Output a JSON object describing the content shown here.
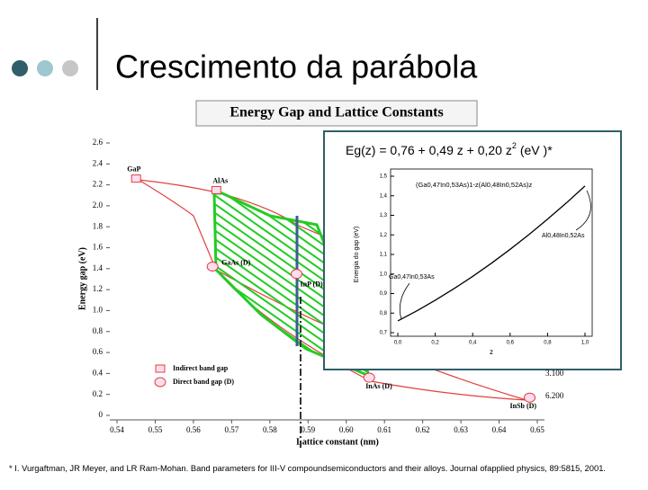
{
  "header": {
    "title": "Crescimento da parábola"
  },
  "figure": {
    "title": "Energy Gap and Lattice Constants",
    "x_label": "Lattice constant (nm)",
    "y_label": "Energy gap (eV)",
    "xlim": [
      0.54,
      0.65
    ],
    "ylim": [
      0,
      2.6
    ],
    "xticks": [
      0.54,
      0.55,
      0.56,
      0.57,
      0.58,
      0.59,
      {
        "value": 0.6,
        "label": "0.60"
      },
      0.61,
      0.62,
      0.63,
      0.64,
      0.65
    ],
    "yticks": [
      0,
      0.2,
      0.4,
      0.6,
      0.8,
      {
        "value": 1,
        "label": "1.0"
      },
      1.2,
      1.4,
      1.6,
      1.8,
      {
        "value": 2,
        "label": "2.0"
      },
      2.2,
      2.4,
      2.6
    ],
    "points": [
      {
        "label": "GaP",
        "x": 0.545,
        "y": 2.26,
        "marker": "square"
      },
      {
        "label": "AlAs",
        "x": 0.566,
        "y": 2.15,
        "marker": "square"
      },
      {
        "label": "GaAs (D)",
        "x": 0.565,
        "y": 1.42,
        "marker": "circle"
      },
      {
        "label": "InP (D)",
        "x": 0.587,
        "y": 1.35,
        "marker": "circle"
      },
      {
        "label": "InAs (D)",
        "x": 0.606,
        "y": 0.36,
        "marker": "circle"
      },
      {
        "label": "InSb (D)",
        "x": 0.648,
        "y": 0.17,
        "marker": "circle"
      }
    ],
    "legend": [
      {
        "label": "Indirect band gap",
        "marker": "square"
      },
      {
        "label": "Direct band gap (D)",
        "marker": "circle"
      }
    ],
    "right_labels": [
      "3.100",
      "6.200"
    ]
  },
  "inset": {
    "equation": "Eg(z) = 0,76 + 0,49 z + 0,20 z",
    "equation_sup": "2",
    "equation_unit": "(eV )*",
    "x_label": "z",
    "y_label": "Energia do gap (eV)",
    "xlim": [
      0,
      1
    ],
    "ylim": [
      0.7,
      1.5
    ],
    "xticks": [
      {
        "value": 0,
        "label": "0,0"
      },
      {
        "value": 0.2,
        "label": "0,2"
      },
      {
        "value": 0.4,
        "label": "0,4"
      },
      {
        "value": 0.6,
        "label": "0,6"
      },
      {
        "value": 0.8,
        "label": "0,8"
      },
      {
        "value": 1,
        "label": "1,0"
      }
    ],
    "yticks": [
      {
        "value": 0.7,
        "label": "0,7"
      },
      {
        "value": 0.8,
        "label": "0,8"
      },
      {
        "value": 0.9,
        "label": "0,9"
      },
      {
        "value": 1,
        "label": "1,0"
      },
      {
        "value": 1.1,
        "label": "1,1"
      },
      {
        "value": 1.2,
        "label": "1,2"
      },
      {
        "value": 1.3,
        "label": "1,3"
      },
      {
        "value": 1.4,
        "label": "1,4"
      },
      {
        "value": 1.5,
        "label": "1,5"
      }
    ],
    "curve": {
      "x": [
        0,
        0.1,
        0.2,
        0.3,
        0.4,
        0.5,
        0.6,
        0.7,
        0.8,
        0.9,
        1
      ],
      "values": [
        0.76,
        0.811,
        0.866,
        0.925,
        0.988,
        1.055,
        1.126,
        1.201,
        1.28,
        1.363,
        1.45
      ]
    },
    "annotations": [
      "(Ga0,47In0,53As)1-z(Al0,48In0,52As)z",
      "Al0,48In0,52As",
      "Ga0,47In0,53As"
    ]
  },
  "footnote": "* I. Vurgaftman, JR Meyer, and LR Ram-Mohan. Band parameters for III-V compoundsemiconductors and their alloys. Journal ofapplied physics, 89:5815, 2001."
}
